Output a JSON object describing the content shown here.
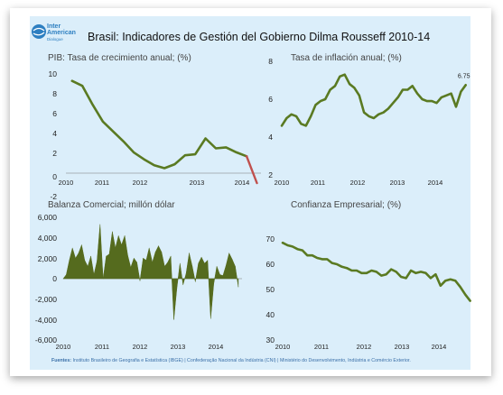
{
  "title": "Brasil: Indicadores de Gestión del Gobierno Dilma Rousseff 2010-14",
  "logo": {
    "line1": "Inter",
    "line2": "American",
    "line3": "Dialogue"
  },
  "footer": {
    "label": "Fuentes:",
    "text": "Instituto Brasileiro de Geografia e Estatística (IBGE) | Confederação Nacional da Indústria (CNI) | Ministério do Desenvolvimento, Indústria e Comércio Exterior."
  },
  "colors": {
    "panel_bg": "#dbeefa",
    "series": "#5a7a22",
    "fill": "#556b1e",
    "forecast": "#c0504d"
  },
  "chart_data": [
    {
      "id": "pib",
      "type": "line",
      "title": "PIB: Tasa de crecimiento anual; (%)",
      "x_ticks": [
        "2010",
        "2011",
        "2012",
        "2013",
        "2014"
      ],
      "y_ticks": [
        "10",
        "8",
        "6",
        "4",
        "2",
        "0",
        "-2"
      ],
      "ylim": [
        -2,
        10
      ],
      "x": [
        2010.0,
        2010.25,
        2010.5,
        2010.75,
        2011.0,
        2011.25,
        2011.5,
        2011.75,
        2012.0,
        2012.25,
        2012.5,
        2012.75,
        2013.0,
        2013.25,
        2013.5,
        2013.75,
        2014.0,
        2014.25
      ],
      "values": [
        9.3,
        8.8,
        6.9,
        5.2,
        4.2,
        3.2,
        2.1,
        1.4,
        0.8,
        0.5,
        0.9,
        1.8,
        1.9,
        3.5,
        2.5,
        2.6,
        2.1,
        1.7
      ],
      "forecast": {
        "x": [
          2014.25,
          2014.5
        ],
        "values": [
          1.7,
          -1.0
        ]
      },
      "xlim": [
        2009.85,
        2014.6
      ]
    },
    {
      "id": "inflacion",
      "type": "line",
      "title": "Tasa de inflación anual;  (%)",
      "x_ticks": [
        "2010",
        "2011",
        "2012",
        "2013",
        "2014"
      ],
      "y_ticks": [
        "8",
        "6",
        "4",
        "2"
      ],
      "ylim": [
        2,
        8
      ],
      "annotation": "6.75",
      "x": [
        2010.0,
        2010.125,
        2010.25,
        2010.375,
        2010.5,
        2010.625,
        2010.75,
        2010.875,
        2011.0,
        2011.125,
        2011.25,
        2011.375,
        2011.5,
        2011.625,
        2011.75,
        2011.875,
        2012.0,
        2012.125,
        2012.25,
        2012.375,
        2012.5,
        2012.625,
        2012.75,
        2012.875,
        2013.0,
        2013.125,
        2013.25,
        2013.375,
        2013.5,
        2013.625,
        2013.75,
        2013.875,
        2014.0,
        2014.125,
        2014.25,
        2014.375,
        2014.5,
        2014.625,
        2014.75
      ],
      "values": [
        4.6,
        5.0,
        5.2,
        5.1,
        4.7,
        4.6,
        5.1,
        5.7,
        5.9,
        6.0,
        6.5,
        6.7,
        7.2,
        7.3,
        6.8,
        6.6,
        6.2,
        5.3,
        5.1,
        5.0,
        5.2,
        5.3,
        5.5,
        5.8,
        6.1,
        6.5,
        6.5,
        6.7,
        6.3,
        6.0,
        5.9,
        5.9,
        5.8,
        6.1,
        6.2,
        6.3,
        5.6,
        6.4,
        6.75
      ],
      "xlim": [
        2010.0,
        2014.85
      ]
    },
    {
      "id": "balanza",
      "type": "area",
      "title": "Balanza Comercial; millón dólar",
      "x_ticks": [
        "2010",
        "2011",
        "2012",
        "2013",
        "2014"
      ],
      "y_ticks": [
        "6,000",
        "4,000",
        "2,000",
        "0",
        "-2,000",
        "-4,000",
        "-6,000"
      ],
      "ylim": [
        -6000,
        6000
      ],
      "x": [
        2010.0,
        2010.083,
        2010.167,
        2010.25,
        2010.333,
        2010.417,
        2010.5,
        2010.583,
        2010.667,
        2010.75,
        2010.833,
        2010.917,
        2011.0,
        2011.083,
        2011.167,
        2011.25,
        2011.333,
        2011.417,
        2011.5,
        2011.583,
        2011.667,
        2011.75,
        2011.833,
        2011.917,
        2012.0,
        2012.083,
        2012.167,
        2012.25,
        2012.333,
        2012.417,
        2012.5,
        2012.583,
        2012.667,
        2012.75,
        2012.833,
        2012.917,
        2013.0,
        2013.083,
        2013.167,
        2013.25,
        2013.333,
        2013.417,
        2013.5,
        2013.583,
        2013.667,
        2013.75,
        2013.833,
        2013.917,
        2014.0,
        2014.083,
        2014.167,
        2014.25,
        2014.333,
        2014.417,
        2014.5,
        2014.583,
        2014.667,
        2014.75
      ],
      "values": [
        0,
        400,
        1800,
        3000,
        2000,
        2500,
        3300,
        1800,
        1200,
        2200,
        400,
        1700,
        5300,
        0,
        2200,
        2400,
        4600,
        3000,
        4200,
        3300,
        4200,
        2300,
        1100,
        2000,
        1600,
        -200,
        2000,
        1800,
        3000,
        1600,
        2600,
        3200,
        2600,
        1200,
        1600,
        2200,
        -4000,
        -900,
        1500,
        -600,
        500,
        2500,
        1200,
        -300,
        1500,
        2100,
        1500,
        1800,
        -3900,
        -500,
        1200,
        400,
        300,
        1300,
        2500,
        1900,
        1200,
        -800
      ],
      "xlim": [
        2010.0,
        2014.85
      ]
    },
    {
      "id": "confianza",
      "type": "line",
      "title": "Confianza Empresarial;  (%)",
      "x_ticks": [
        "2010",
        "2011",
        "2012",
        "2013",
        "2014"
      ],
      "y_ticks": [
        "70",
        "60",
        "50",
        "40",
        "30"
      ],
      "ylim": [
        30,
        70
      ],
      "x": [
        2010.0,
        2010.125,
        2010.25,
        2010.375,
        2010.5,
        2010.625,
        2010.75,
        2010.875,
        2011.0,
        2011.125,
        2011.25,
        2011.375,
        2011.5,
        2011.625,
        2011.75,
        2011.875,
        2012.0,
        2012.125,
        2012.25,
        2012.375,
        2012.5,
        2012.625,
        2012.75,
        2012.875,
        2013.0,
        2013.125,
        2013.25,
        2013.375,
        2013.5,
        2013.625,
        2013.75,
        2013.875,
        2014.0,
        2014.125,
        2014.25,
        2014.375,
        2014.5,
        2014.625,
        2014.75
      ],
      "values": [
        68.5,
        67.5,
        67.0,
        66.0,
        65.5,
        63.5,
        63.5,
        62.5,
        62.0,
        62.0,
        60.5,
        60.0,
        59.0,
        58.5,
        57.5,
        57.5,
        56.5,
        56.5,
        57.5,
        57.0,
        55.5,
        56.0,
        58.0,
        57.0,
        55.0,
        54.5,
        57.5,
        56.5,
        57.0,
        56.5,
        54.5,
        56.0,
        51.5,
        53.5,
        54.0,
        53.5,
        51.0,
        48.0,
        45.5
      ],
      "xlim": [
        2010.0,
        2014.85
      ]
    }
  ]
}
